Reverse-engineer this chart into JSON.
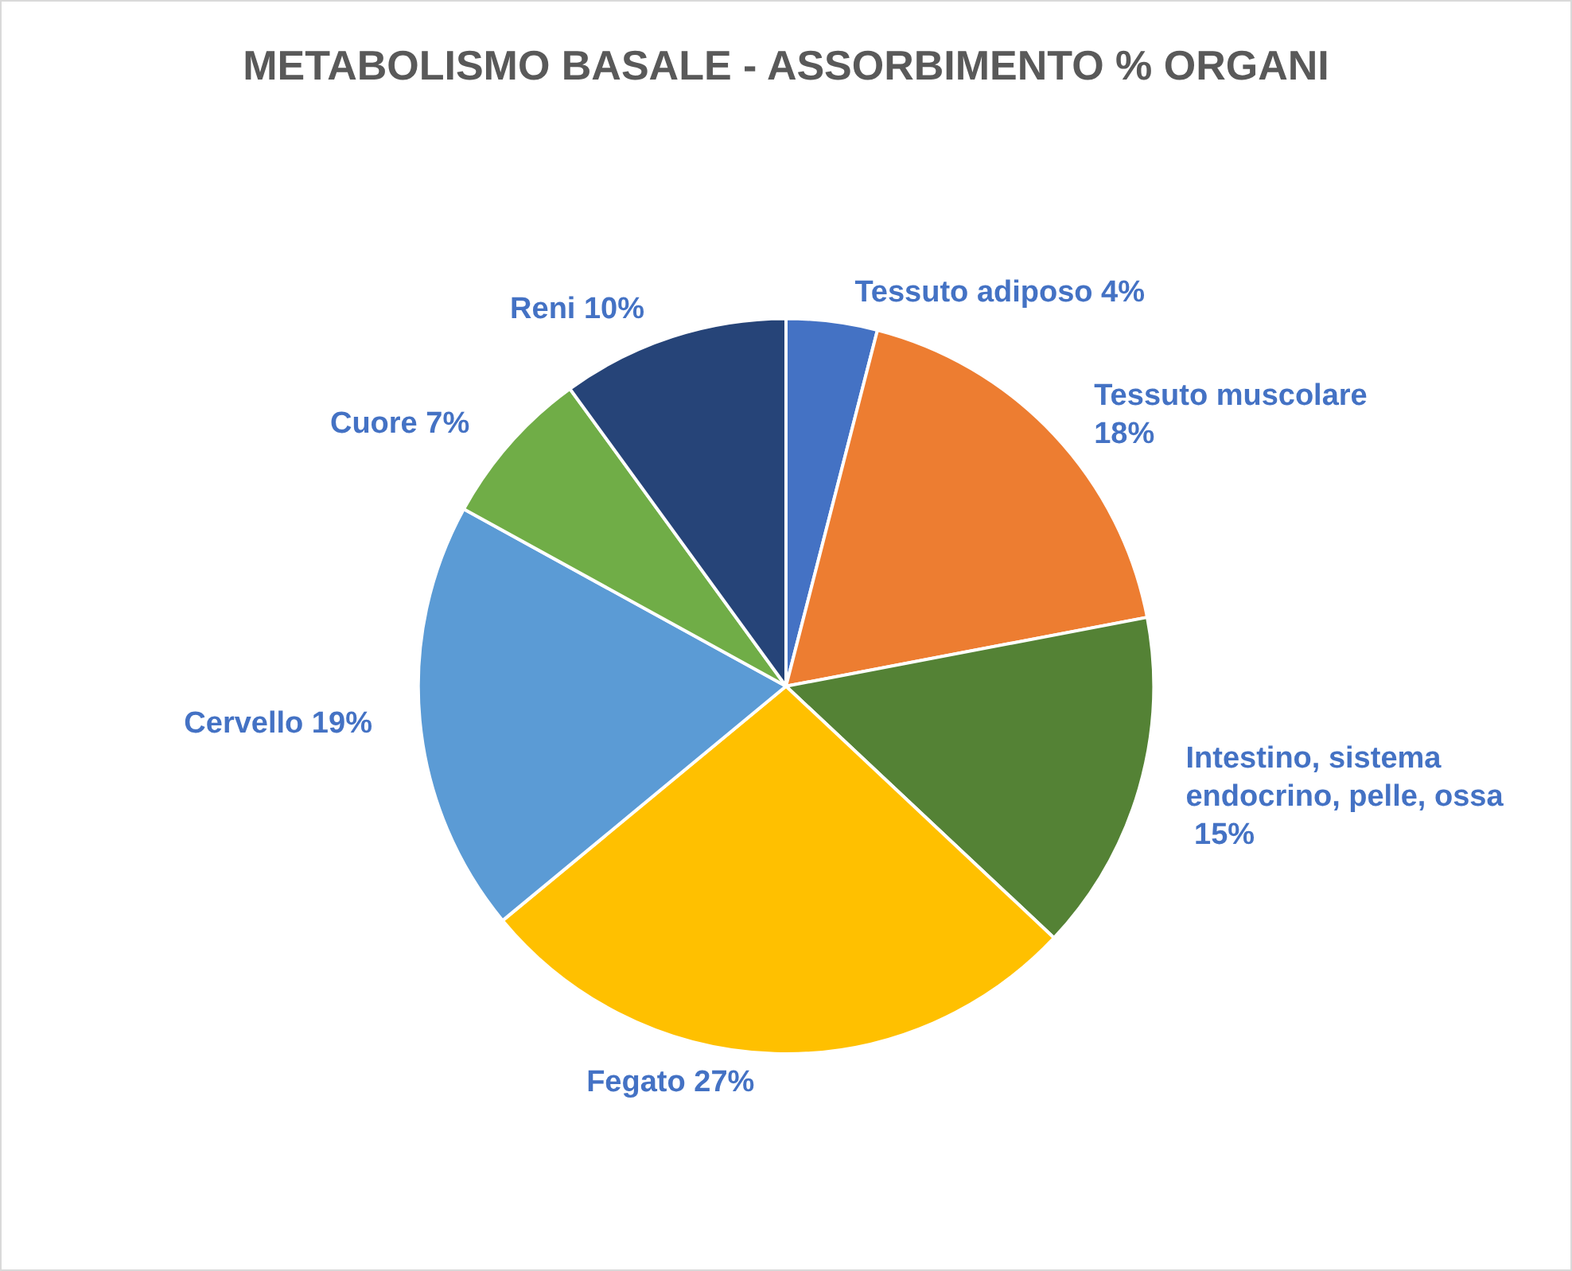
{
  "chart_data": {
    "type": "pie",
    "title": "METABOLISMO BASALE - ASSORBIMENTO % ORGANI",
    "categories": [
      "Tessuto adiposo",
      "Tessuto muscolare",
      "Intestino, sistema endocrino, pelle, ossa",
      "Fegato",
      "Cervello",
      "Cuore",
      "Reni"
    ],
    "values": [
      4,
      18,
      15,
      27,
      19,
      7,
      10
    ],
    "value_labels": [
      "4%",
      "18%",
      "15%",
      "27%",
      "19%",
      "7%",
      "10%"
    ],
    "colors": [
      "#4472c4",
      "#ed7d31",
      "#548235",
      "#ffc000",
      "#5b9bd5",
      "#70ad47",
      "#264478"
    ]
  }
}
